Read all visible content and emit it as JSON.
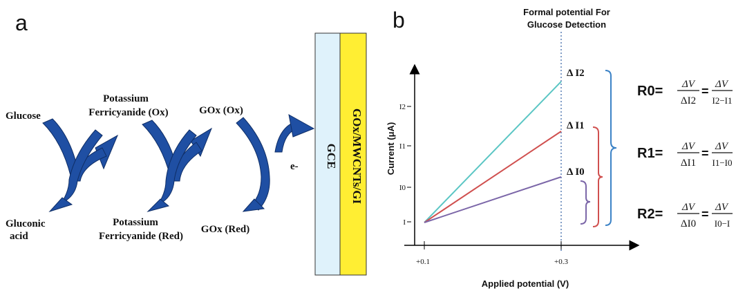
{
  "panel_a": {
    "letter": "a",
    "glucose": "Glucose",
    "gluconic_line1": "Gluconic",
    "gluconic_line2": "acid",
    "pf_ox_line1": "Potassium",
    "pf_ox_line2": "Ferricyanide  (Ox)",
    "pf_red_line1": "Potassium",
    "pf_red_line2": "Ferricyanide  (Red)",
    "gox_ox": "GOx (Ox)",
    "gox_red": "GOx (Red)",
    "electron": "e-",
    "gce_label": "GCE",
    "layer_label": "GOx/MWCNTs/GI",
    "colors": {
      "arrow": "#1f4fa3",
      "gce_layer": "#dff2fb",
      "coating_layer": "#ffee33"
    }
  },
  "panel_b": {
    "letter": "b",
    "header_line1": "Formal potential For",
    "header_line2": "Glucose Detection",
    "ylabel": "Current (μA)",
    "xlabel": "Applied potential  (V)",
    "xticks": [
      "+0.1",
      "+0.3"
    ],
    "yticks": [
      "I",
      "I0",
      "I1",
      "I2"
    ],
    "delta_labels": {
      "d2": "Δ I2",
      "d1": "Δ I1",
      "d0": "Δ I0"
    },
    "lines": [
      {
        "name": "I2",
        "color": "#5bc6c4"
      },
      {
        "name": "I1",
        "color": "#d0504f"
      },
      {
        "name": "I0",
        "color": "#7b66a8"
      }
    ],
    "bracket_colors": {
      "outer": "#3b82c6",
      "middle": "#d0504f",
      "inner": "#7b66a8"
    }
  },
  "equations": {
    "r0_label": "R0=",
    "r0_frac1_num": "ΔV",
    "r0_frac1_den": "ΔI2",
    "r0_frac2_num": "ΔV",
    "r0_frac2_den": "I2−I1",
    "r1_label": "R1=",
    "r1_frac1_num": "ΔV",
    "r1_frac1_den": "ΔI1",
    "r1_frac2_num": "ΔV",
    "r1_frac2_den": "I1−I0",
    "r2_label": "R2=",
    "r2_frac1_num": "ΔV",
    "r2_frac1_den": "ΔI0",
    "r2_frac2_num": "ΔV",
    "r2_frac2_den": "I0−I",
    "eq_sign": "="
  }
}
